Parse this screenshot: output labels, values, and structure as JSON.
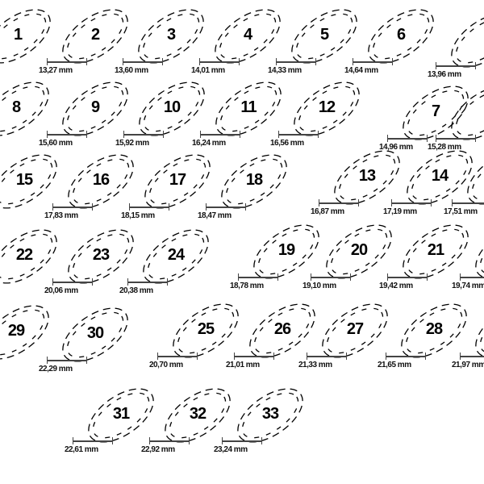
{
  "unit": "mm",
  "rings": [
    {
      "size": "1",
      "diameter": ""
    },
    {
      "size": "2",
      "diameter": "13,27 mm"
    },
    {
      "size": "3",
      "diameter": "13,60 mm"
    },
    {
      "size": "4",
      "diameter": "14,01 mm"
    },
    {
      "size": "5",
      "diameter": "14,33 mm"
    },
    {
      "size": "6",
      "diameter": "14,64 mm"
    },
    {
      "size": "",
      "diameter": "13,96 mm"
    },
    {
      "size": "8",
      "diameter": ""
    },
    {
      "size": "9",
      "diameter": "15,60 mm"
    },
    {
      "size": "10",
      "diameter": "15,92 mm"
    },
    {
      "size": "11",
      "diameter": "16,24 mm"
    },
    {
      "size": "12",
      "diameter": "16,56 mm"
    },
    {
      "size": "7",
      "diameter": "14,96 mm"
    },
    {
      "size": "",
      "diameter": "15,28 mm"
    },
    {
      "size": "15",
      "diameter": ""
    },
    {
      "size": "16",
      "diameter": "17,83 mm"
    },
    {
      "size": "17",
      "diameter": "18,15 mm"
    },
    {
      "size": "18",
      "diameter": "18,47 mm"
    },
    {
      "size": "13",
      "diameter": "16,87 mm"
    },
    {
      "size": "14",
      "diameter": "17,19 mm"
    },
    {
      "size": "",
      "diameter": "17,51 mm"
    },
    {
      "size": "22",
      "diameter": ""
    },
    {
      "size": "23",
      "diameter": "20,06 mm"
    },
    {
      "size": "24",
      "diameter": "20,38 mm"
    },
    {
      "size": "19",
      "diameter": "18,78 mm"
    },
    {
      "size": "20",
      "diameter": "19,10 mm"
    },
    {
      "size": "21",
      "diameter": "19,42 mm"
    },
    {
      "size": "",
      "diameter": "19,74 mm"
    },
    {
      "size": "29",
      "diameter": ""
    },
    {
      "size": "30",
      "diameter": "22,29 mm"
    },
    {
      "size": "25",
      "diameter": "20,70 mm"
    },
    {
      "size": "26",
      "diameter": "21,01 mm"
    },
    {
      "size": "27",
      "diameter": "21,33 mm"
    },
    {
      "size": "28",
      "diameter": "21,65 mm"
    },
    {
      "size": "",
      "diameter": "21,97 mm"
    },
    {
      "size": "31",
      "diameter": "22,61 mm"
    },
    {
      "size": "32",
      "diameter": "22,92 mm"
    },
    {
      "size": "33",
      "diameter": "23,24 mm"
    }
  ]
}
